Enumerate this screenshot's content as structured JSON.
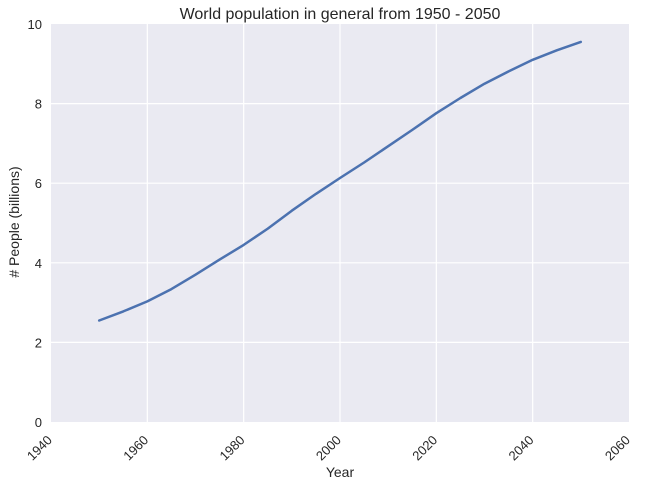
{
  "chart_data": {
    "type": "line",
    "title": "World population in general from 1950 - 2050",
    "xlabel": "Year",
    "ylabel": "# People (billions)",
    "xlim": [
      1940,
      2060
    ],
    "ylim": [
      0,
      10
    ],
    "xticks": [
      "1940",
      "1960",
      "1980",
      "2000",
      "2020",
      "2040",
      "2060"
    ],
    "yticks": [
      "0",
      "2",
      "4",
      "6",
      "8",
      "10"
    ],
    "grid": true,
    "colors": {
      "background": "#EAEAF2",
      "grid": "#FFFFFF",
      "line": "#4C72B0"
    },
    "series": [
      {
        "x": [
          1950,
          1955,
          1960,
          1965,
          1970,
          1975,
          1980,
          1985,
          1990,
          1995,
          2000,
          2005,
          2010,
          2015,
          2020,
          2025,
          2030,
          2035,
          2040,
          2045,
          2050
        ],
        "values": [
          2.55,
          2.78,
          3.03,
          3.34,
          3.7,
          4.08,
          4.45,
          4.86,
          5.31,
          5.73,
          6.13,
          6.52,
          6.93,
          7.34,
          7.76,
          8.14,
          8.5,
          8.81,
          9.1,
          9.34,
          9.55
        ]
      }
    ]
  }
}
